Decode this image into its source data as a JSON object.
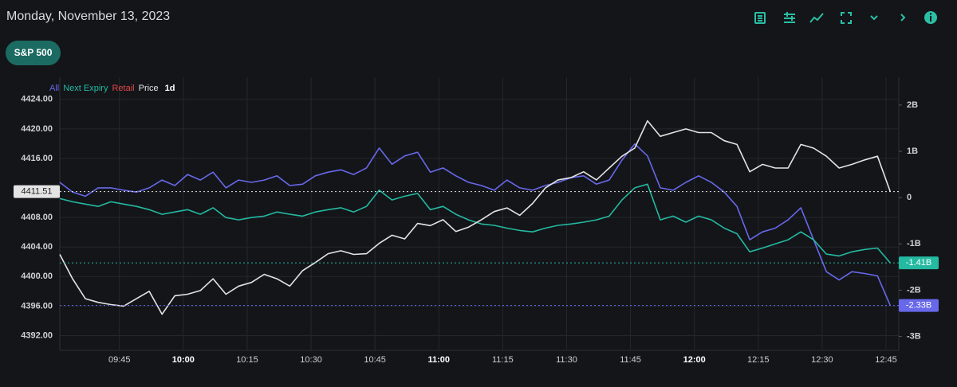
{
  "header": {
    "date": "Monday, November 13, 2023",
    "symbol": "S&P 500"
  },
  "chart_data": {
    "type": "line",
    "timeframe": "1d",
    "x": [
      "09:31",
      "09:34",
      "09:37",
      "09:40",
      "09:43",
      "09:46",
      "09:49",
      "09:52",
      "09:55",
      "09:58",
      "10:01",
      "10:04",
      "10:07",
      "10:10",
      "10:13",
      "10:16",
      "10:19",
      "10:22",
      "10:25",
      "10:28",
      "10:31",
      "10:34",
      "10:37",
      "10:40",
      "10:43",
      "10:46",
      "10:49",
      "10:52",
      "10:55",
      "10:58",
      "11:01",
      "11:04",
      "11:07",
      "11:10",
      "11:13",
      "11:16",
      "11:19",
      "11:22",
      "11:25",
      "11:28",
      "11:31",
      "11:34",
      "11:37",
      "11:40",
      "11:43",
      "11:46",
      "11:49",
      "11:52",
      "11:55",
      "11:58",
      "12:01",
      "12:04",
      "12:07",
      "12:10",
      "12:13",
      "12:16",
      "12:19",
      "12:22",
      "12:25",
      "12:28",
      "12:31",
      "12:34",
      "12:37",
      "12:40",
      "12:43",
      "12:46"
    ],
    "xlim": [
      "09:31",
      "12:48"
    ],
    "xticks": [
      "09:45",
      "10:00",
      "10:15",
      "10:30",
      "10:45",
      "11:00",
      "11:15",
      "11:30",
      "11:45",
      "12:00",
      "12:15",
      "12:30",
      "12:45"
    ],
    "ylim": [
      4390,
      4427
    ],
    "yticks": [
      {
        "value": 4392,
        "label": "4392.00"
      },
      {
        "value": 4396,
        "label": "4396.00"
      },
      {
        "value": 4400,
        "label": "4400.00"
      },
      {
        "value": 4404,
        "label": "4404.00"
      },
      {
        "value": 4408,
        "label": "4408.00"
      },
      {
        "value": 4416,
        "label": "4416.00"
      },
      {
        "value": 4420,
        "label": "4420.00"
      },
      {
        "value": 4424,
        "label": "4424.00"
      }
    ],
    "y2lim": [
      -3.3,
      2.6
    ],
    "y2ticks": [
      {
        "value": -3,
        "label": "-3B"
      },
      {
        "value": -2,
        "label": "-2B"
      },
      {
        "value": -1,
        "label": "-1B"
      },
      0,
      {
        "value": 1,
        "label": "1B"
      },
      {
        "value": 2,
        "label": "2B"
      }
    ],
    "grid": true,
    "series": [
      {
        "name": "All",
        "color": "#6868ea",
        "axis": "y2",
        "last_label": "-2.33B",
        "values": [
          0.33,
          0.12,
          0.03,
          0.21,
          0.21,
          0.16,
          0.12,
          0.21,
          0.38,
          0.26,
          0.5,
          0.38,
          0.55,
          0.21,
          0.38,
          0.33,
          0.38,
          0.47,
          0.26,
          0.29,
          0.47,
          0.55,
          0.6,
          0.5,
          0.64,
          1.07,
          0.72,
          0.9,
          0.98,
          0.55,
          0.64,
          0.47,
          0.33,
          0.26,
          0.16,
          0.38,
          0.21,
          0.16,
          0.26,
          0.33,
          0.43,
          0.47,
          0.29,
          0.38,
          0.81,
          1.16,
          0.9,
          0.21,
          0.16,
          0.33,
          0.47,
          0.33,
          0.12,
          -0.19,
          -0.91,
          -0.74,
          -0.66,
          -0.48,
          -0.22,
          -0.91,
          -1.6,
          -1.78,
          -1.6,
          -1.64,
          -1.69,
          -2.33
        ]
      },
      {
        "name": "Next Expiry",
        "color": "#24b9a1",
        "axis": "y2",
        "last_label": "-1.41B",
        "values": [
          -0.02,
          -0.09,
          -0.14,
          -0.19,
          -0.09,
          -0.14,
          -0.19,
          -0.26,
          -0.36,
          -0.31,
          -0.26,
          -0.36,
          -0.22,
          -0.43,
          -0.48,
          -0.43,
          -0.4,
          -0.31,
          -0.36,
          -0.4,
          -0.31,
          -0.26,
          -0.22,
          -0.31,
          -0.19,
          0.16,
          -0.05,
          0.03,
          0.09,
          -0.26,
          -0.19,
          -0.36,
          -0.48,
          -0.57,
          -0.6,
          -0.66,
          -0.71,
          -0.74,
          -0.66,
          -0.6,
          -0.57,
          -0.53,
          -0.48,
          -0.4,
          -0.05,
          0.21,
          0.29,
          -0.48,
          -0.4,
          -0.53,
          -0.4,
          -0.48,
          -0.66,
          -0.78,
          -1.17,
          -1.09,
          -1,
          -0.91,
          -0.74,
          -0.91,
          -1.22,
          -1.26,
          -1.17,
          -1.12,
          -1.09,
          -1.41
        ]
      },
      {
        "name": "Retail",
        "color": "#e3484b",
        "axis": "y2",
        "values": [
          null,
          null,
          null,
          null,
          null,
          null,
          null,
          null,
          null,
          null,
          null,
          null,
          null,
          null,
          null,
          null,
          null,
          null,
          null,
          null,
          null,
          null,
          null,
          null,
          null,
          null,
          null,
          null,
          null,
          null,
          null,
          null,
          null,
          null,
          null,
          null,
          null,
          null,
          null,
          null,
          null,
          null,
          null,
          null,
          null,
          null,
          null,
          null,
          null,
          null,
          null,
          null,
          null,
          null,
          null,
          null,
          null,
          null,
          null,
          null,
          null,
          null,
          null,
          null,
          null,
          null
        ]
      },
      {
        "name": "Price",
        "color": "#e4e4e4",
        "axis": "y",
        "values": [
          4403,
          4399.7,
          4397,
          4396.5,
          4396.2,
          4396,
          4397,
          4398,
          4394.9,
          4397.4,
          4397.6,
          4398.1,
          4399.7,
          4397.6,
          4398.7,
          4399.2,
          4400.3,
          4399.7,
          4398.7,
          4400.8,
          4401.9,
          4403.1,
          4403.5,
          4403,
          4403.1,
          4404.5,
          4405.6,
          4405.1,
          4407.2,
          4406.9,
          4407.7,
          4406.1,
          4406.7,
          4407.7,
          4408.8,
          4409.3,
          4408.3,
          4409.9,
          4412,
          4413.1,
          4413.4,
          4414.2,
          4413.1,
          4414.7,
          4416.3,
          4417.4,
          4421.1,
          4419,
          4419.5,
          4420,
          4419.5,
          4419.5,
          4418.4,
          4417.9,
          4414.2,
          4415.2,
          4414.7,
          4414.7,
          4417.9,
          4417.4,
          4416.3,
          4414.7,
          4415.2,
          4415.8,
          4416.3,
          4411.51
        ]
      }
    ]
  }
}
